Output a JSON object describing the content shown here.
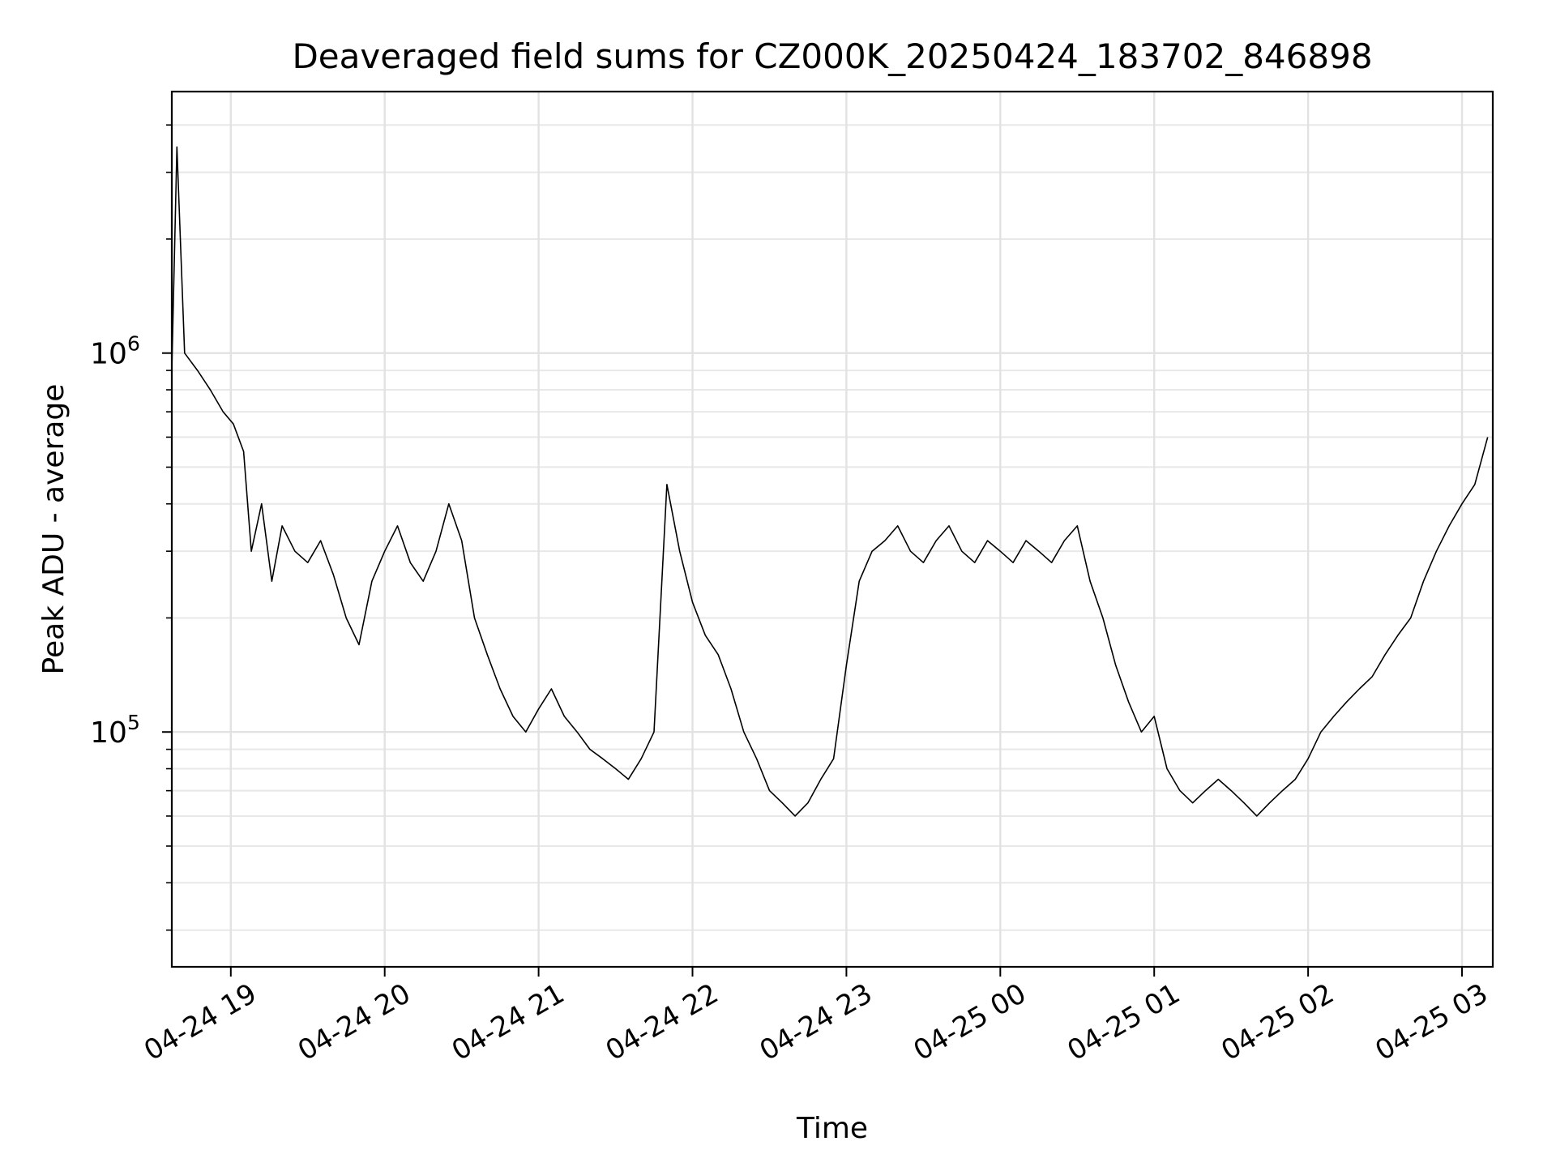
{
  "chart_data": {
    "type": "line",
    "title": "Deaveraged field sums for CZ000K_20250424_183702_846898",
    "xlabel": "Time",
    "ylabel": "Peak ADU - average",
    "yscale": "log",
    "ylim": [
      24000,
      4900000
    ],
    "xlim": [
      "2025-04-24 18:37",
      "2025-04-25 03:12"
    ],
    "grid": true,
    "x_ticks": [
      {
        "value": "2025-04-24 19:00",
        "label": "04-24 19"
      },
      {
        "value": "2025-04-24 20:00",
        "label": "04-24 20"
      },
      {
        "value": "2025-04-24 21:00",
        "label": "04-24 21"
      },
      {
        "value": "2025-04-24 22:00",
        "label": "04-24 22"
      },
      {
        "value": "2025-04-24 23:00",
        "label": "04-24 23"
      },
      {
        "value": "2025-04-25 00:00",
        "label": "04-25 00"
      },
      {
        "value": "2025-04-25 01:00",
        "label": "04-25 01"
      },
      {
        "value": "2025-04-25 02:00",
        "label": "04-25 02"
      },
      {
        "value": "2025-04-25 03:00",
        "label": "04-25 03"
      }
    ],
    "y_ticks": [
      {
        "value": 100000,
        "base": "10",
        "exp": "5"
      },
      {
        "value": 1000000,
        "base": "10",
        "exp": "6"
      }
    ],
    "series": [
      {
        "color": "#000000",
        "points": [
          [
            "2025-04-24 18:37",
            900000
          ],
          [
            "2025-04-24 18:39",
            3500000
          ],
          [
            "2025-04-24 18:42",
            1000000
          ],
          [
            "2025-04-24 18:47",
            900000
          ],
          [
            "2025-04-24 18:52",
            800000
          ],
          [
            "2025-04-24 18:57",
            700000
          ],
          [
            "2025-04-24 19:01",
            650000
          ],
          [
            "2025-04-24 19:05",
            550000
          ],
          [
            "2025-04-24 19:08",
            300000
          ],
          [
            "2025-04-24 19:12",
            400000
          ],
          [
            "2025-04-24 19:16",
            250000
          ],
          [
            "2025-04-24 19:20",
            350000
          ],
          [
            "2025-04-24 19:25",
            300000
          ],
          [
            "2025-04-24 19:30",
            280000
          ],
          [
            "2025-04-24 19:35",
            320000
          ],
          [
            "2025-04-24 19:40",
            260000
          ],
          [
            "2025-04-24 19:45",
            200000
          ],
          [
            "2025-04-24 19:50",
            170000
          ],
          [
            "2025-04-24 19:55",
            250000
          ],
          [
            "2025-04-24 20:00",
            300000
          ],
          [
            "2025-04-24 20:05",
            350000
          ],
          [
            "2025-04-24 20:10",
            280000
          ],
          [
            "2025-04-24 20:15",
            250000
          ],
          [
            "2025-04-24 20:20",
            300000
          ],
          [
            "2025-04-24 20:25",
            400000
          ],
          [
            "2025-04-24 20:30",
            320000
          ],
          [
            "2025-04-24 20:35",
            200000
          ],
          [
            "2025-04-24 20:40",
            160000
          ],
          [
            "2025-04-24 20:45",
            130000
          ],
          [
            "2025-04-24 20:50",
            110000
          ],
          [
            "2025-04-24 20:55",
            100000
          ],
          [
            "2025-04-24 21:00",
            115000
          ],
          [
            "2025-04-24 21:05",
            130000
          ],
          [
            "2025-04-24 21:10",
            110000
          ],
          [
            "2025-04-24 21:15",
            100000
          ],
          [
            "2025-04-24 21:20",
            90000
          ],
          [
            "2025-04-24 21:25",
            85000
          ],
          [
            "2025-04-24 21:30",
            80000
          ],
          [
            "2025-04-24 21:35",
            75000
          ],
          [
            "2025-04-24 21:40",
            85000
          ],
          [
            "2025-04-24 21:45",
            100000
          ],
          [
            "2025-04-24 21:50",
            450000
          ],
          [
            "2025-04-24 21:55",
            300000
          ],
          [
            "2025-04-24 22:00",
            220000
          ],
          [
            "2025-04-24 22:05",
            180000
          ],
          [
            "2025-04-24 22:10",
            160000
          ],
          [
            "2025-04-24 22:15",
            130000
          ],
          [
            "2025-04-24 22:20",
            100000
          ],
          [
            "2025-04-24 22:25",
            85000
          ],
          [
            "2025-04-24 22:30",
            70000
          ],
          [
            "2025-04-24 22:35",
            65000
          ],
          [
            "2025-04-24 22:40",
            60000
          ],
          [
            "2025-04-24 22:45",
            65000
          ],
          [
            "2025-04-24 22:50",
            75000
          ],
          [
            "2025-04-24 22:55",
            85000
          ],
          [
            "2025-04-24 23:00",
            150000
          ],
          [
            "2025-04-24 23:05",
            250000
          ],
          [
            "2025-04-24 23:10",
            300000
          ],
          [
            "2025-04-24 23:15",
            320000
          ],
          [
            "2025-04-24 23:20",
            350000
          ],
          [
            "2025-04-24 23:25",
            300000
          ],
          [
            "2025-04-24 23:30",
            280000
          ],
          [
            "2025-04-24 23:35",
            320000
          ],
          [
            "2025-04-24 23:40",
            350000
          ],
          [
            "2025-04-24 23:45",
            300000
          ],
          [
            "2025-04-24 23:50",
            280000
          ],
          [
            "2025-04-24 23:55",
            320000
          ],
          [
            "2025-04-25 00:00",
            300000
          ],
          [
            "2025-04-25 00:05",
            280000
          ],
          [
            "2025-04-25 00:10",
            320000
          ],
          [
            "2025-04-25 00:15",
            300000
          ],
          [
            "2025-04-25 00:20",
            280000
          ],
          [
            "2025-04-25 00:25",
            320000
          ],
          [
            "2025-04-25 00:30",
            350000
          ],
          [
            "2025-04-25 00:35",
            250000
          ],
          [
            "2025-04-25 00:40",
            200000
          ],
          [
            "2025-04-25 00:45",
            150000
          ],
          [
            "2025-04-25 00:50",
            120000
          ],
          [
            "2025-04-25 00:55",
            100000
          ],
          [
            "2025-04-25 01:00",
            110000
          ],
          [
            "2025-04-25 01:05",
            80000
          ],
          [
            "2025-04-25 01:10",
            70000
          ],
          [
            "2025-04-25 01:15",
            65000
          ],
          [
            "2025-04-25 01:20",
            70000
          ],
          [
            "2025-04-25 01:25",
            75000
          ],
          [
            "2025-04-25 01:30",
            70000
          ],
          [
            "2025-04-25 01:35",
            65000
          ],
          [
            "2025-04-25 01:40",
            60000
          ],
          [
            "2025-04-25 01:45",
            65000
          ],
          [
            "2025-04-25 01:50",
            70000
          ],
          [
            "2025-04-25 01:55",
            75000
          ],
          [
            "2025-04-25 02:00",
            85000
          ],
          [
            "2025-04-25 02:05",
            100000
          ],
          [
            "2025-04-25 02:10",
            110000
          ],
          [
            "2025-04-25 02:15",
            120000
          ],
          [
            "2025-04-25 02:20",
            130000
          ],
          [
            "2025-04-25 02:25",
            140000
          ],
          [
            "2025-04-25 02:30",
            160000
          ],
          [
            "2025-04-25 02:35",
            180000
          ],
          [
            "2025-04-25 02:40",
            200000
          ],
          [
            "2025-04-25 02:45",
            250000
          ],
          [
            "2025-04-25 02:50",
            300000
          ],
          [
            "2025-04-25 02:55",
            350000
          ],
          [
            "2025-04-25 03:00",
            400000
          ],
          [
            "2025-04-25 03:05",
            450000
          ],
          [
            "2025-04-25 03:10",
            600000
          ]
        ]
      }
    ]
  }
}
